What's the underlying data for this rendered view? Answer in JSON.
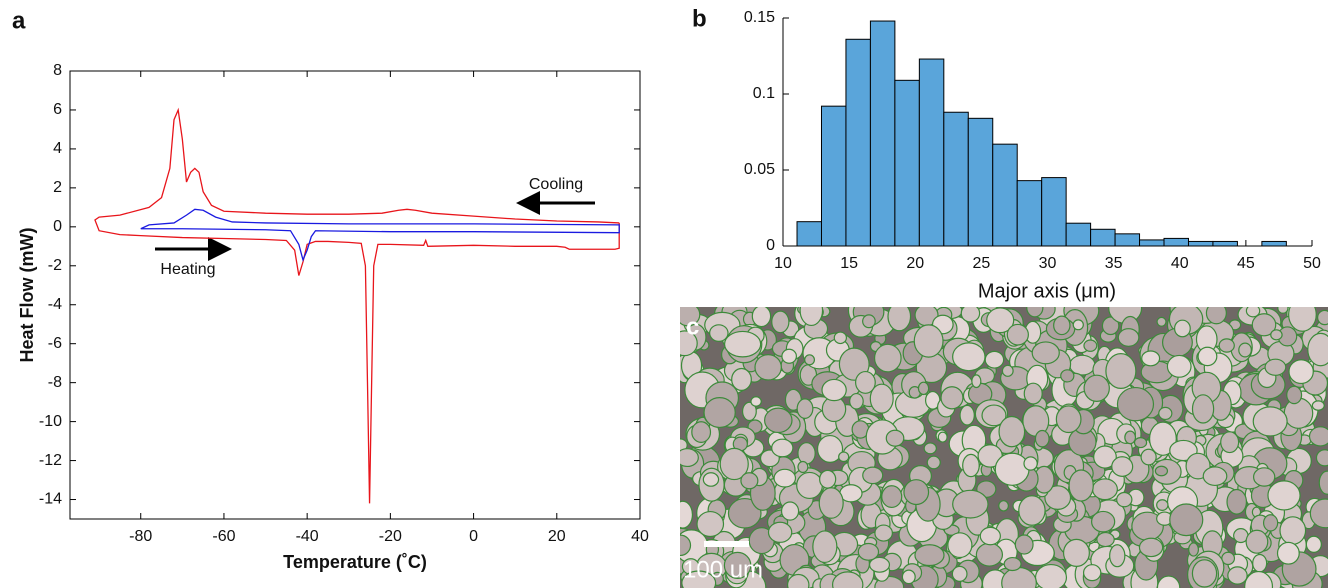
{
  "chart_data": [
    {
      "type": "line",
      "panel_label": "a",
      "xlabel": "Temperature (˚C)",
      "ylabel": "Heat Flow (mW)",
      "xlim": [
        -97,
        40
      ],
      "xticks": [
        -80,
        -60,
        -40,
        -20,
        0,
        20,
        40
      ],
      "ylim": [
        -15,
        8
      ],
      "yticks": [
        -14,
        -12,
        -10,
        -8,
        -6,
        -4,
        -2,
        0,
        2,
        4,
        6,
        8
      ],
      "annotations": [
        "Cooling",
        "Heating"
      ],
      "series": [
        {
          "color": "#e8151b",
          "x": [
            35,
            30,
            20,
            10,
            0,
            -10,
            -14,
            -16,
            -18,
            -22,
            -30,
            -40,
            -50,
            -60,
            -63,
            -65,
            -66,
            -67,
            -68,
            -69,
            -70,
            -71,
            -72,
            -73,
            -75,
            -78,
            -85,
            -90,
            -91,
            -90,
            -85,
            -80,
            -70,
            -60,
            -50,
            -45,
            -43,
            -42,
            -41,
            -40,
            -38,
            -35,
            -30,
            -27,
            -26,
            -25.5,
            -25,
            -24.5,
            -24,
            -23,
            -20,
            -12,
            -11.5,
            -11,
            0,
            10,
            20,
            22,
            23,
            30,
            34,
            35,
            35
          ],
          "values": [
            0.2,
            0.25,
            0.3,
            0.4,
            0.55,
            0.7,
            0.85,
            0.9,
            0.85,
            0.7,
            0.65,
            0.65,
            0.7,
            0.8,
            1.1,
            1.8,
            2.8,
            3.0,
            2.8,
            2.3,
            4.5,
            6.0,
            5.5,
            3.0,
            1.5,
            1.0,
            0.6,
            0.5,
            0.35,
            -0.2,
            -0.4,
            -0.45,
            -0.55,
            -0.6,
            -0.65,
            -0.7,
            -1.2,
            -2.5,
            -1.8,
            -0.9,
            -0.75,
            -0.75,
            -0.8,
            -0.85,
            -2,
            -8,
            -14.2,
            -8,
            -2,
            -0.9,
            -0.9,
            -0.95,
            -0.7,
            -1.0,
            -0.95,
            -1.0,
            -1.0,
            -1.05,
            -1.15,
            -1.15,
            -1.15,
            -1.1,
            0.2
          ]
        },
        {
          "color": "#1a1ae0",
          "x": [
            -80,
            -78,
            -72,
            -69,
            -67,
            -65,
            -62,
            -58,
            -50,
            -30,
            0,
            35,
            35,
            0,
            -20,
            -38,
            -39,
            -40,
            -41,
            -42,
            -44,
            -50,
            -70,
            -80
          ],
          "values": [
            -0.1,
            0.1,
            0.2,
            0.6,
            0.9,
            0.85,
            0.5,
            0.25,
            0.2,
            0.15,
            0.15,
            0.1,
            -0.3,
            -0.25,
            -0.25,
            -0.2,
            -0.5,
            -1.2,
            -1.7,
            -0.9,
            -0.2,
            -0.15,
            -0.1,
            -0.1
          ]
        }
      ]
    },
    {
      "type": "histogram",
      "panel_label": "b",
      "xlabel": "Major axis (μm)",
      "color": "#5aa5da",
      "bins": [
        11.06,
        12.91,
        14.76,
        16.61,
        18.46,
        20.31,
        22.16,
        24.01,
        25.86,
        27.71,
        29.56,
        31.41,
        33.26,
        35.11,
        36.96,
        38.81,
        40.66,
        42.51,
        44.36,
        46.21,
        48.06
      ],
      "values": [
        0.016,
        0.092,
        0.136,
        0.148,
        0.109,
        0.123,
        0.088,
        0.084,
        0.067,
        0.043,
        0.045,
        0.015,
        0.011,
        0.008,
        0.004,
        0.005,
        0.003,
        0.003,
        0,
        0.003
      ],
      "xlim": [
        10,
        50
      ],
      "xticks": [
        10,
        15,
        20,
        25,
        30,
        35,
        40,
        45,
        50
      ],
      "ylim": [
        0,
        0.15
      ],
      "yticks": [
        0,
        0.05,
        0.1,
        0.15
      ]
    }
  ],
  "image": {
    "panel_label": "c",
    "scale_bar": "100 um"
  }
}
